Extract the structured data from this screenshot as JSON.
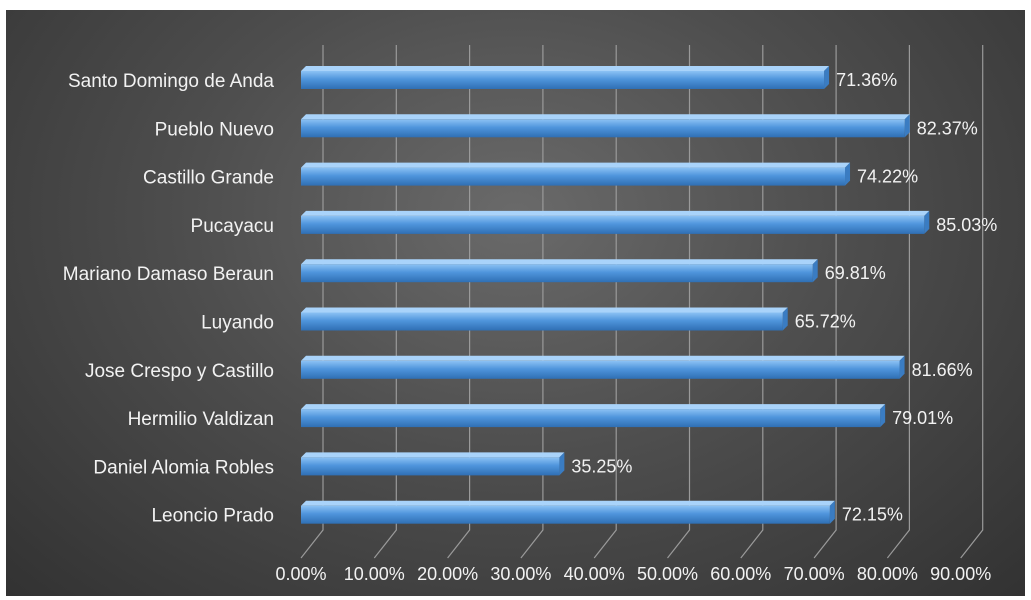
{
  "chart_data": {
    "type": "bar",
    "orientation": "horizontal",
    "categories": [
      "Santo Domingo de Anda",
      "Pueblo Nuevo",
      "Castillo Grande",
      "Pucayacu",
      "Mariano Damaso Beraun",
      "Luyando",
      "Jose Crespo y Castillo",
      "Hermilio Valdizan",
      "Daniel Alomia Robles",
      "Leoncio Prado"
    ],
    "values": [
      71.36,
      82.37,
      74.22,
      85.03,
      69.81,
      65.72,
      81.66,
      79.01,
      35.25,
      72.15
    ],
    "data_labels": [
      "71.36%",
      "82.37%",
      "74.22%",
      "85.03%",
      "69.81%",
      "65.72%",
      "81.66%",
      "79.01%",
      "35.25%",
      "72.15%"
    ],
    "x_ticks": [
      "0.00%",
      "10.00%",
      "20.00%",
      "30.00%",
      "40.00%",
      "50.00%",
      "60.00%",
      "70.00%",
      "80.00%",
      "90.00%"
    ],
    "xlim": [
      0,
      90
    ],
    "grid": true,
    "legend": "none",
    "colors": {
      "bar": "#4f95dc",
      "background": "#4a4a4a",
      "text": "#f2f2f2"
    }
  }
}
